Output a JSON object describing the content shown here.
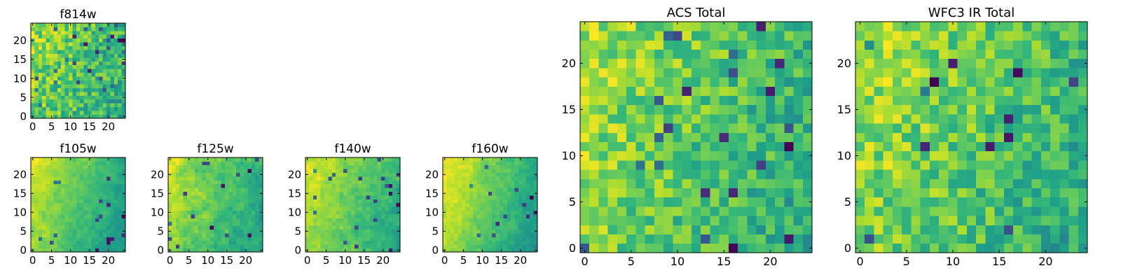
{
  "figure": {
    "description_free": true
  },
  "chart_data": [
    {
      "type": "heatmap",
      "title": "f814w",
      "grid": [
        25,
        25
      ],
      "xlim": [
        -0.5,
        24.5
      ],
      "ylim": [
        -0.5,
        24.5
      ],
      "xticks": [
        0,
        5,
        10,
        15,
        20
      ],
      "yticks": [
        0,
        5,
        10,
        15,
        20
      ],
      "colormap": "viridis",
      "seed": 11,
      "gradient": 0.35,
      "noise": 0.55,
      "smooth": 0,
      "speckle": 0.05
    },
    {
      "type": "heatmap",
      "title": "f105w",
      "grid": [
        25,
        25
      ],
      "xlim": [
        -0.5,
        24.5
      ],
      "ylim": [
        -0.5,
        24.5
      ],
      "xticks": [
        0,
        5,
        10,
        15,
        20
      ],
      "yticks": [
        0,
        5,
        10,
        15,
        20
      ],
      "colormap": "viridis",
      "seed": 23,
      "gradient": 0.7,
      "noise": 0.3,
      "smooth": 1,
      "speckle": 0.03
    },
    {
      "type": "heatmap",
      "title": "f125w",
      "grid": [
        25,
        25
      ],
      "xlim": [
        -0.5,
        24.5
      ],
      "ylim": [
        -0.5,
        24.5
      ],
      "xticks": [
        0,
        5,
        10,
        15,
        20
      ],
      "yticks": [
        0,
        5,
        10,
        15,
        20
      ],
      "colormap": "viridis",
      "seed": 37,
      "gradient": 0.45,
      "noise": 0.45,
      "smooth": 1,
      "speckle": 0.03
    },
    {
      "type": "heatmap",
      "title": "f140w",
      "grid": [
        25,
        25
      ],
      "xlim": [
        -0.5,
        24.5
      ],
      "ylim": [
        -0.5,
        24.5
      ],
      "xticks": [
        0,
        5,
        10,
        15,
        20
      ],
      "yticks": [
        0,
        5,
        10,
        15,
        20
      ],
      "colormap": "viridis",
      "seed": 41,
      "gradient": 0.6,
      "noise": 0.4,
      "smooth": 1,
      "speckle": 0.03
    },
    {
      "type": "heatmap",
      "title": "f160w",
      "grid": [
        25,
        25
      ],
      "xlim": [
        -0.5,
        24.5
      ],
      "ylim": [
        -0.5,
        24.5
      ],
      "xticks": [
        0,
        5,
        10,
        15,
        20
      ],
      "yticks": [
        0,
        5,
        10,
        15,
        20
      ],
      "colormap": "viridis",
      "seed": 53,
      "gradient": 0.75,
      "noise": 0.3,
      "smooth": 1,
      "speckle": 0.04
    },
    {
      "type": "heatmap",
      "title": "ACS Total",
      "grid": [
        25,
        25
      ],
      "xlim": [
        -0.5,
        24.5
      ],
      "ylim": [
        -0.5,
        24.5
      ],
      "xticks": [
        0,
        5,
        10,
        15,
        20
      ],
      "yticks": [
        0,
        5,
        10,
        15,
        20
      ],
      "colormap": "viridis",
      "seed": 61,
      "gradient": 0.4,
      "noise": 0.45,
      "smooth": 0,
      "speckle": 0.04
    },
    {
      "type": "heatmap",
      "title": "WFC3 IR Total",
      "grid": [
        25,
        25
      ],
      "xlim": [
        -0.5,
        24.5
      ],
      "ylim": [
        -0.5,
        24.5
      ],
      "xticks": [
        0,
        5,
        10,
        15,
        20
      ],
      "yticks": [
        0,
        5,
        10,
        15,
        20
      ],
      "colormap": "viridis",
      "seed": 79,
      "gradient": 0.4,
      "noise": 0.45,
      "smooth": 0,
      "speckle": 0.04
    }
  ]
}
